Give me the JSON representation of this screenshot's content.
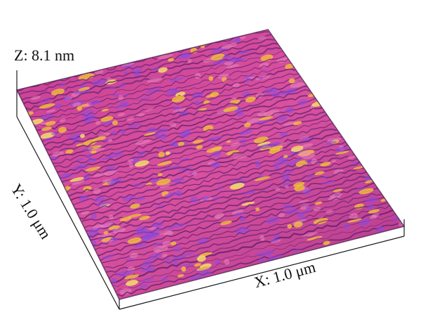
{
  "figure": {
    "z_axis_label": "Z: 8.1 nm",
    "y_axis_label": "Y: 1.0 μm",
    "x_axis_label": "X: 1.0 μm",
    "palette": {
      "base": "#d6479a",
      "dark": "#5a1f6a",
      "violet": "#8a4be0",
      "highlight": "#f2c23a",
      "peak": "#f5e06a",
      "edge": "#1a1a1a"
    }
  }
}
